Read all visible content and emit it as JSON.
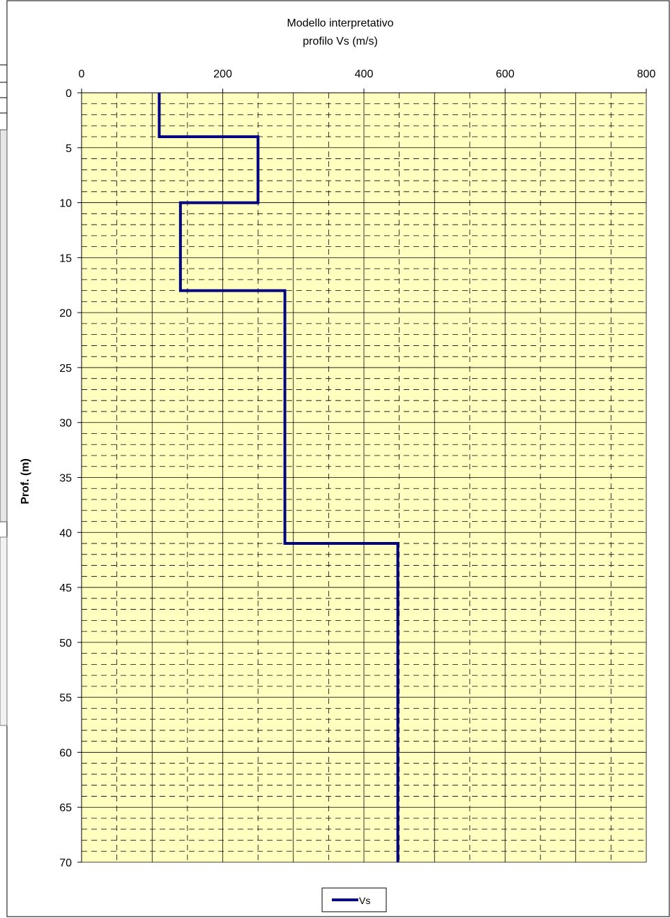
{
  "chart_data": {
    "type": "line",
    "title": "Modello interpretativo",
    "subtitle": "profilo Vs (m/s)",
    "xlabel": "",
    "ylabel": "Prof. (m)",
    "xlim": [
      0,
      800
    ],
    "ylim": [
      0,
      70
    ],
    "y_inverted": true,
    "x_axis_position": "top",
    "x_ticks": [
      0,
      200,
      400,
      600,
      800
    ],
    "y_ticks": [
      0,
      5,
      10,
      15,
      20,
      25,
      30,
      35,
      40,
      45,
      50,
      55,
      60,
      65,
      70
    ],
    "grid": true,
    "plot_background": "#ffffc0",
    "legend_placement": "bottom-center",
    "series": [
      {
        "name": "Vs",
        "color": "#000080",
        "points": [
          [
            110,
            0
          ],
          [
            110,
            4
          ],
          [
            250,
            4
          ],
          [
            250,
            10
          ],
          [
            140,
            10
          ],
          [
            140,
            18
          ],
          [
            288,
            18
          ],
          [
            288,
            41
          ],
          [
            448,
            41
          ],
          [
            448,
            70
          ]
        ]
      }
    ]
  }
}
